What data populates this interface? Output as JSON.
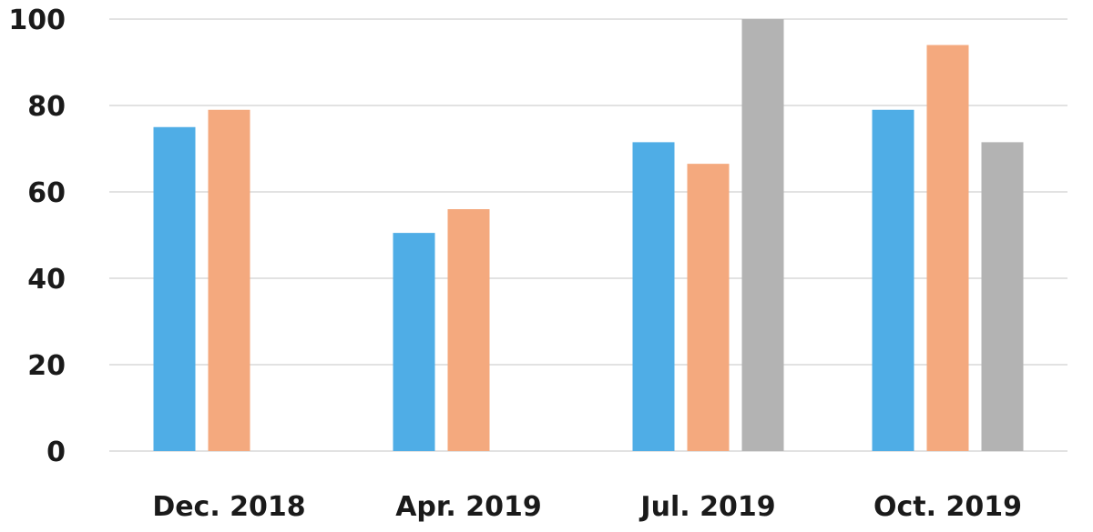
{
  "chart_data": {
    "type": "bar",
    "categories": [
      "Dec. 2018",
      "Apr. 2019",
      "Jul. 2019",
      "Oct. 2019"
    ],
    "series": [
      {
        "color": "#4fade6",
        "values": [
          75,
          50.5,
          71.5,
          79
        ]
      },
      {
        "color": "#f4a97e",
        "values": [
          79,
          56,
          66.5,
          94
        ]
      },
      {
        "color": "#b3b3b3",
        "values": [
          null,
          null,
          100,
          71.5
        ]
      }
    ],
    "title": "",
    "xlabel": "",
    "ylabel": "",
    "ylim": [
      0,
      100
    ],
    "yticks": [
      0,
      20,
      40,
      60,
      80,
      100
    ],
    "grid": true,
    "legend": "none"
  }
}
